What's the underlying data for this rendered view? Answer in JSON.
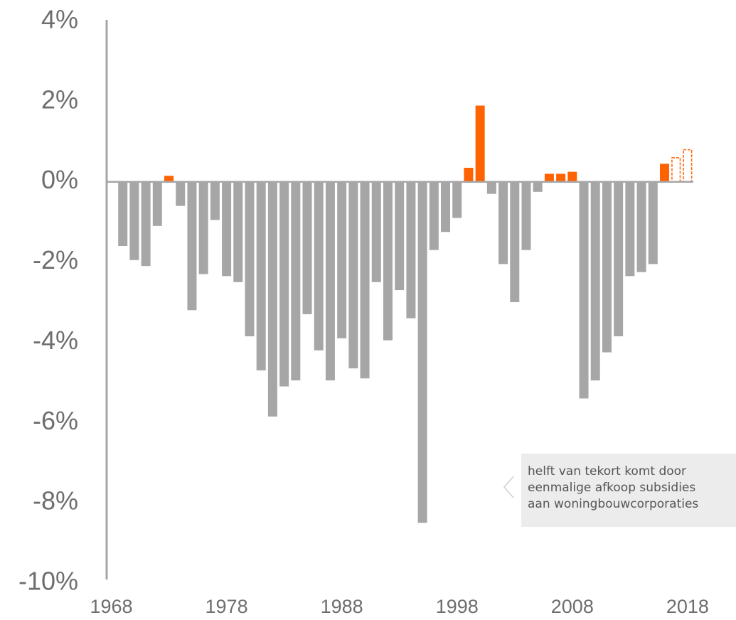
{
  "chart_data": {
    "type": "bar",
    "x": [
      1969,
      1970,
      1971,
      1972,
      1973,
      1974,
      1975,
      1976,
      1977,
      1978,
      1979,
      1980,
      1981,
      1982,
      1983,
      1984,
      1985,
      1986,
      1987,
      1988,
      1989,
      1990,
      1991,
      1992,
      1993,
      1994,
      1995,
      1996,
      1997,
      1998,
      1999,
      2000,
      2001,
      2002,
      2003,
      2004,
      2005,
      2006,
      2007,
      2008,
      2009,
      2010,
      2011,
      2012,
      2013,
      2014,
      2015,
      2016,
      2017,
      2018
    ],
    "values": [
      -1.6,
      -1.95,
      -2.1,
      -1.1,
      0.15,
      -0.6,
      -3.2,
      -2.3,
      -0.95,
      -2.35,
      -2.5,
      -3.85,
      -4.7,
      -5.85,
      -5.1,
      -4.95,
      -3.3,
      -4.2,
      -4.95,
      -3.9,
      -4.65,
      -4.9,
      -2.5,
      -3.95,
      -2.7,
      -3.4,
      -8.5,
      -1.7,
      -1.25,
      -0.9,
      0.35,
      1.9,
      -0.3,
      -2.05,
      -3.0,
      -1.7,
      -0.25,
      0.2,
      0.2,
      0.25,
      -5.4,
      -4.95,
      -4.25,
      -3.85,
      -2.35,
      -2.25,
      -2.05,
      0.45,
      0.6,
      0.8
    ],
    "positive_color": "#ff6200",
    "negative_color": "#a6a6a6",
    "forecast_x": [
      2017,
      2018
    ],
    "xlim": [
      1967.6,
      2018.5
    ],
    "xticks": [
      1968,
      1978,
      1988,
      1998,
      2008,
      2018
    ],
    "ylim": [
      -10,
      4
    ],
    "yticks": [
      {
        "value": 4,
        "label": "4%"
      },
      {
        "value": 2,
        "label": "2%"
      },
      {
        "value": 0,
        "label": "0%"
      },
      {
        "value": -2,
        "label": "-2%"
      },
      {
        "value": -4,
        "label": "-4%"
      },
      {
        "value": -6,
        "label": "-6%"
      },
      {
        "value": -8,
        "label": "-8%"
      },
      {
        "value": -10,
        "label": "-10%"
      }
    ],
    "annotation": [
      "helft van tekort komt door",
      "eenmalige afkoop subsidies",
      "aan woningbouwcorporaties"
    ]
  }
}
